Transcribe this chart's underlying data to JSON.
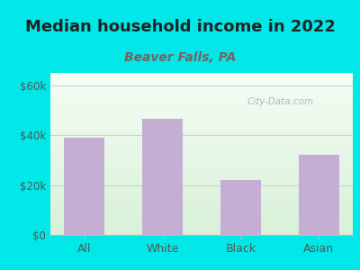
{
  "title": "Median household income in 2022",
  "subtitle": "Beaver Falls, PA",
  "categories": [
    "All",
    "White",
    "Black",
    "Asian"
  ],
  "values": [
    39000,
    46500,
    22000,
    32000
  ],
  "bar_color": "#c4aed4",
  "title_fontsize": 13,
  "title_color": "#222222",
  "subtitle_fontsize": 10,
  "subtitle_color": "#7a6060",
  "tick_label_color": "#555555",
  "background_outer": "#00e8e8",
  "plot_bg_top": "#f5fdf5",
  "plot_bg_bottom": "#d8f0d8",
  "ylim": [
    0,
    65000
  ],
  "yticks": [
    0,
    20000,
    40000,
    60000
  ],
  "ytick_labels": [
    "$0",
    "$20k",
    "$40k",
    "$60k"
  ],
  "watermark": "City-Data.com",
  "grid_color": "#c5d8c0",
  "axis_color": "#bbbbbb"
}
